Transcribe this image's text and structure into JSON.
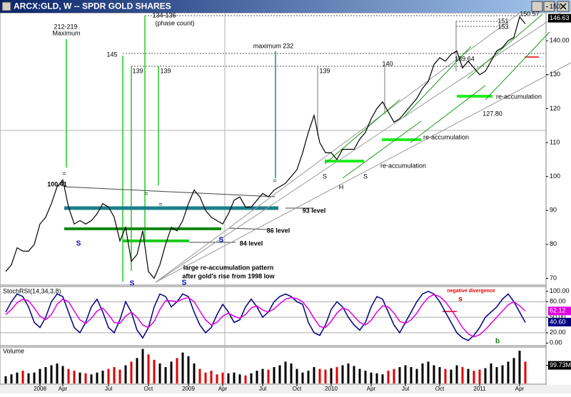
{
  "window_title": "ARCX:GLD, W -- SPDR GOLD SHARES",
  "chart_data": [
    {
      "type": "line",
      "categories": [
        null,
        null,
        null,
        null,
        null,
        null,
        "2008",
        null,
        null,
        null,
        "Apr",
        null,
        null,
        null,
        null,
        null,
        null,
        null,
        "Jul",
        null,
        null,
        null,
        null,
        null,
        null,
        "Oct",
        null,
        null,
        null,
        null,
        null,
        null,
        "2009",
        null,
        null,
        null,
        null,
        null,
        "Apr",
        null,
        null,
        null,
        null,
        null,
        null,
        "Jul",
        null,
        null,
        null,
        null,
        null,
        "Oct",
        null,
        null,
        null,
        null,
        null,
        "2010",
        null,
        null,
        null,
        null,
        null,
        null,
        "Apr",
        null,
        null,
        null,
        null,
        null,
        "Jul",
        null,
        null,
        null,
        null,
        null,
        "Oct",
        null,
        null,
        null,
        null,
        null,
        null,
        "2011",
        null,
        null,
        null,
        null,
        null,
        null,
        "Apr",
        null
      ],
      "series": [
        {
          "color": "#000000",
          "values": [
            72,
            74,
            79,
            78,
            78,
            80,
            86,
            88,
            92,
            97,
            99,
            91,
            86,
            87,
            86,
            87,
            89,
            92,
            91,
            88,
            81,
            85,
            75,
            77,
            84,
            72,
            70,
            74,
            80,
            85,
            84,
            87,
            92,
            96,
            94,
            90,
            88,
            87,
            86,
            89,
            93,
            94,
            91,
            91,
            93,
            95,
            94,
            96,
            97,
            98,
            100,
            102,
            107,
            113,
            118,
            110,
            107,
            107,
            105,
            108,
            108,
            108,
            111,
            113,
            117,
            120,
            122,
            119,
            116,
            117,
            119,
            121,
            123,
            126,
            128,
            133,
            135,
            134,
            136,
            137,
            132,
            134,
            132,
            130,
            131,
            134,
            137,
            138,
            140,
            141,
            147,
            145
          ]
        }
      ],
      "ylim": [
        68,
        152
      ],
      "yticks": [
        70,
        80,
        90,
        100,
        110,
        120,
        130,
        140,
        150
      ],
      "price_labels": [
        {
          "value": 146.63,
          "label": "146.63"
        },
        {
          "value": 140,
          "label": "140.00"
        }
      ],
      "annotations": [
        "212-219",
        "Maximum",
        "145",
        "139",
        "139",
        "134-136",
        "(phase count)",
        "maximum 232",
        "139",
        "140",
        "139.64",
        "151",
        "153",
        "150.57",
        "100.41",
        "93 level",
        "86 level",
        "84 level",
        "large re-accumulation pattern",
        "after gold's rise from 1998 low",
        "S",
        "S",
        "S",
        "S",
        "S",
        "H",
        "S",
        "re-accumulation",
        "re-accumulation",
        "re-accumulation",
        "127.80",
        "=",
        "=",
        "=",
        "="
      ]
    },
    {
      "type": "line",
      "title": "StochRSI(14,34,3,8)",
      "series": [
        {
          "color": "#000080",
          "values": [
            60,
            80,
            95,
            90,
            70,
            40,
            30,
            50,
            80,
            95,
            90,
            60,
            30,
            20,
            40,
            70,
            85,
            60,
            30,
            20,
            45,
            80,
            60,
            25,
            10,
            30,
            70,
            95,
            90,
            70,
            80,
            95,
            90,
            60,
            35,
            20,
            30,
            55,
            75,
            60,
            40,
            45,
            70,
            85,
            70,
            50,
            60,
            80,
            90,
            95,
            90,
            80,
            75,
            40,
            20,
            15,
            35,
            65,
            80,
            70,
            50,
            35,
            25,
            40,
            70,
            90,
            85,
            60,
            35,
            20,
            40,
            60,
            80,
            95,
            100,
            95,
            80,
            60,
            40,
            20,
            10,
            5,
            15,
            30,
            50,
            60,
            70,
            85,
            95,
            80,
            60,
            40
          ]
        },
        {
          "color": "#e000e0",
          "values": [
            55,
            65,
            78,
            85,
            82,
            68,
            52,
            45,
            55,
            75,
            85,
            80,
            62,
            45,
            38,
            48,
            62,
            68,
            55,
            40,
            38,
            52,
            60,
            50,
            35,
            30,
            42,
            65,
            82,
            82,
            80,
            85,
            88,
            80,
            62,
            45,
            35,
            40,
            52,
            58,
            52,
            48,
            55,
            68,
            72,
            64,
            60,
            66,
            76,
            85,
            88,
            86,
            80,
            66,
            48,
            32,
            30,
            42,
            58,
            68,
            64,
            52,
            40,
            35,
            44,
            60,
            72,
            70,
            58,
            42,
            38,
            45,
            58,
            75,
            88,
            94,
            90,
            80,
            65,
            48,
            30,
            18,
            12,
            16,
            26,
            38,
            50,
            62,
            74,
            80,
            72,
            62
          ]
        }
      ],
      "ylim": [
        -5,
        108
      ],
      "yticks": [
        {
          "value": 100,
          "label": "100.00"
        },
        {
          "value": 80,
          "label": "80.00"
        },
        {
          "value": 50,
          "label": "50.00"
        },
        {
          "value": 20,
          "label": "20.00"
        },
        {
          "value": 0,
          "label": "0.00"
        }
      ],
      "last_labels": [
        {
          "value": 62.12,
          "label": "62.12",
          "color": "#e000e0"
        },
        {
          "value": 40.6,
          "label": "40.60",
          "color": "#000080"
        }
      ],
      "annotations": [
        "negative divergence",
        "s",
        "b"
      ]
    },
    {
      "type": "bar",
      "title": "Volume",
      "up_color": "#000000",
      "down_color": "#e00000",
      "values": [
        40,
        50,
        60,
        70,
        56,
        60,
        80,
        90,
        100,
        110,
        96,
        80,
        70,
        60,
        56,
        50,
        60,
        70,
        80,
        90,
        76,
        100,
        120,
        140,
        190,
        160,
        130,
        110,
        90,
        120,
        140,
        170,
        150,
        110,
        80,
        60,
        70,
        50,
        60,
        56,
        60,
        50,
        44,
        56,
        70,
        80,
        76,
        90,
        100,
        120,
        110,
        80,
        60,
        70,
        90,
        80,
        76,
        84,
        90,
        100,
        110,
        96,
        80,
        70,
        60,
        56,
        50,
        70,
        80,
        90,
        100,
        90,
        80,
        110,
        120,
        100,
        90,
        80,
        76,
        100,
        90,
        80,
        70,
        76,
        84,
        110,
        90,
        100,
        120,
        140,
        180,
        120
      ],
      "ylim": [
        0,
        200
      ],
      "yticks": [
        {
          "value": 99.73,
          "label": "99.73M"
        }
      ]
    }
  ]
}
